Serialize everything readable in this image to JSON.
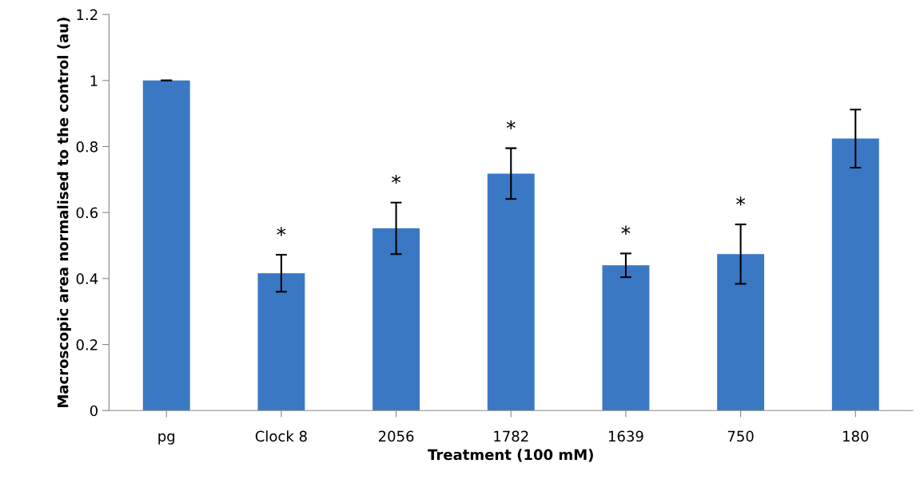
{
  "chart_data": {
    "type": "bar",
    "xlabel": "Treatment (100 mM)",
    "ylabel": "Macroscopic area normalised to the control (au)",
    "categories": [
      "pg",
      "Clock 8",
      "2056",
      "1782",
      "1639",
      "750",
      "180"
    ],
    "values": [
      1.0,
      0.416,
      0.552,
      0.718,
      0.44,
      0.474,
      0.824
    ],
    "errors": [
      0,
      0.056,
      0.078,
      0.077,
      0.036,
      0.09,
      0.088
    ],
    "color": "#3a78c4",
    "ylim": [
      0,
      1.2
    ],
    "yticks": [
      0,
      0.2,
      0.4,
      0.6,
      0.8,
      1,
      1.2
    ],
    "grid": false,
    "value_labels": [
      null,
      "*",
      "*",
      "*",
      "*",
      "*",
      null
    ]
  }
}
